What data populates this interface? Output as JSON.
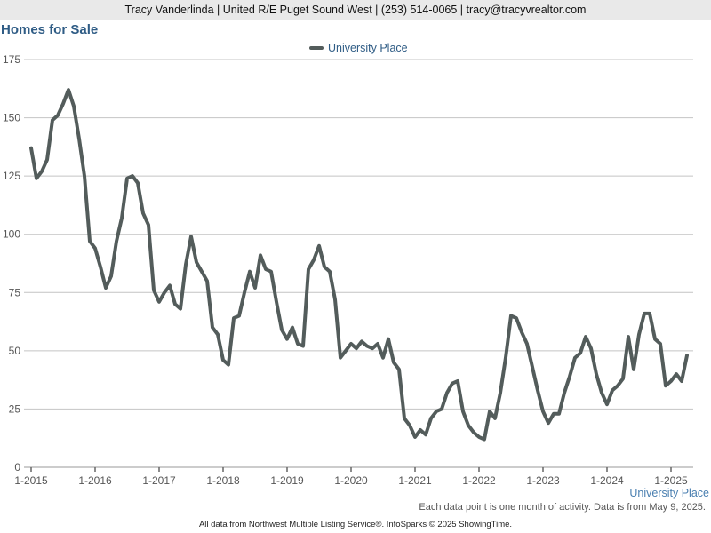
{
  "header": {
    "contact_line": "Tracy Vanderlinda | United R/E Puget Sound West | (253) 514-0065 | tracy@tracyvrealtor.com"
  },
  "page": {
    "title": "Homes for Sale",
    "series_label": "University Place",
    "note": "Each data point is one month of activity. Data is from May 9, 2025.",
    "footer": "All data from Northwest Multiple Listing Service®. InfoSparks © 2025 ShowingTime."
  },
  "colors": {
    "line": "#535c5b",
    "title": "#2f5c85",
    "grid": "#c4c4c4"
  },
  "chart_data": {
    "type": "line",
    "title": "Homes for Sale",
    "x_start": "2015-01",
    "x_ticks": [
      "1-2015",
      "1-2016",
      "1-2017",
      "1-2018",
      "1-2019",
      "1-2020",
      "1-2021",
      "1-2022",
      "1-2023",
      "1-2024",
      "1-2025"
    ],
    "ylim": [
      0,
      175
    ],
    "y_ticks": [
      0,
      25,
      50,
      75,
      100,
      125,
      150,
      175
    ],
    "grid": true,
    "legend": "top-center",
    "series": [
      {
        "name": "University Place",
        "values": [
          137,
          124,
          127,
          132,
          149,
          151,
          156,
          162,
          155,
          141,
          125,
          97,
          94,
          86,
          77,
          82,
          97,
          107,
          124,
          125,
          122,
          109,
          104,
          76,
          71,
          75,
          78,
          70,
          68,
          87,
          99,
          88,
          84,
          80,
          60,
          57,
          46,
          44,
          64,
          65,
          75,
          84,
          77,
          91,
          85,
          84,
          71,
          59,
          55,
          60,
          53,
          52,
          85,
          89,
          95,
          86,
          84,
          72,
          47,
          50,
          53,
          51,
          54,
          52,
          51,
          53,
          47,
          55,
          45,
          42,
          21,
          18,
          13,
          16,
          14,
          21,
          24,
          25,
          32,
          36,
          37,
          24,
          18,
          15,
          13,
          12,
          24,
          21,
          32,
          47,
          65,
          64,
          58,
          53,
          43,
          33,
          24,
          19,
          23,
          23,
          32,
          39,
          47,
          49,
          56,
          51,
          40,
          32,
          27,
          33,
          35,
          38,
          56,
          42,
          57,
          66,
          66,
          55,
          53,
          35,
          37,
          40,
          37,
          48
        ]
      }
    ]
  }
}
